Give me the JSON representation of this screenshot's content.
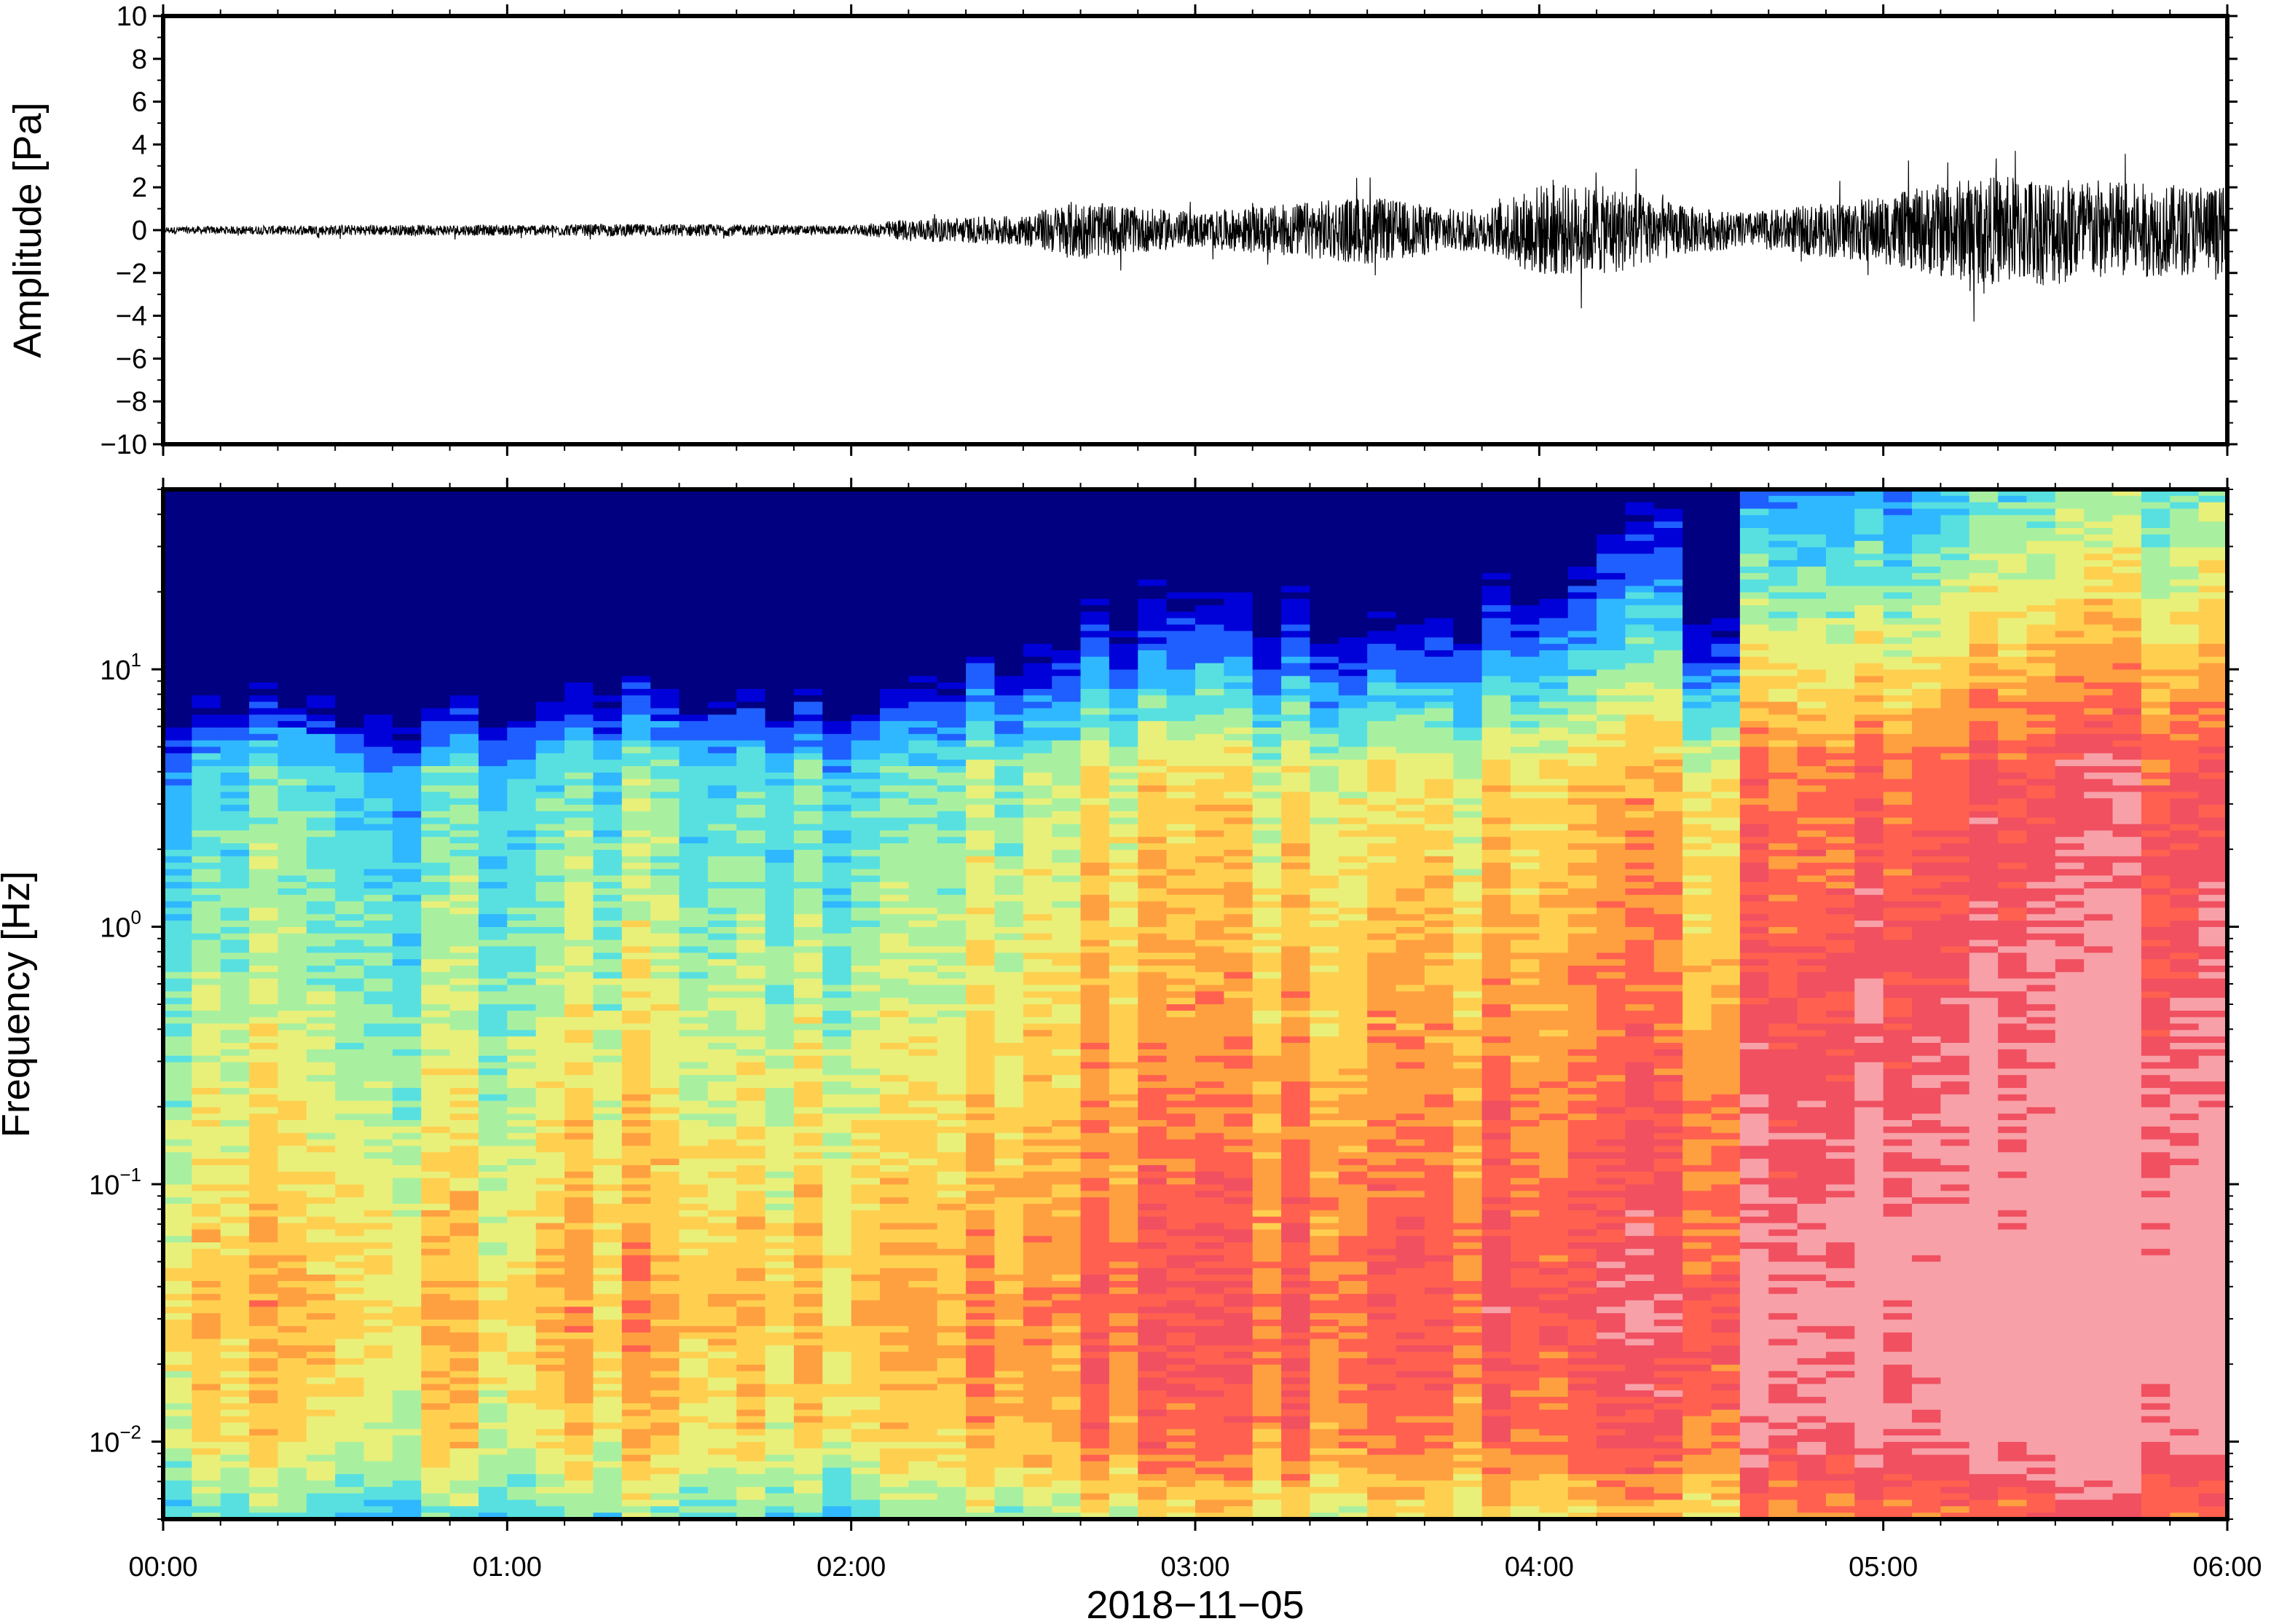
{
  "chart_data": [
    {
      "type": "line",
      "panel": "waveform",
      "ylabel": "Amplitude [Pa]",
      "ylim": [
        -10,
        10
      ],
      "yticks": [
        "10",
        "8",
        "6",
        "4",
        "2",
        "0",
        "−2",
        "−4",
        "−6",
        "−8",
        "−10"
      ],
      "yvalues": [
        10,
        8,
        6,
        4,
        2,
        0,
        -2,
        -4,
        -6,
        -8,
        -10
      ],
      "xlim": [
        "00:00",
        "06:00"
      ],
      "series": [
        {
          "color": "#000000",
          "envelope_hours": [
            0.0,
            0.5,
            1.0,
            1.5,
            2.0,
            2.15,
            2.5,
            2.65,
            2.75,
            3.0,
            3.5,
            3.75,
            3.85,
            4.0,
            4.25,
            4.4,
            4.6,
            4.8,
            5.0,
            5.25,
            5.5,
            5.75,
            6.0
          ],
          "envelope_pa": [
            0.15,
            0.25,
            0.25,
            0.3,
            0.2,
            0.5,
            0.7,
            1.4,
            1.2,
            0.8,
            1.6,
            1.0,
            1.0,
            2.2,
            2.0,
            1.2,
            0.8,
            1.2,
            1.6,
            2.5,
            2.6,
            2.2,
            2.0
          ]
        }
      ]
    },
    {
      "type": "heatmap",
      "panel": "spectrogram",
      "ylabel": "Frequency [Hz]",
      "xlabel": "2018−11−05",
      "yscale": "log",
      "ylim": [
        0.005,
        50
      ],
      "yticks": [
        {
          "base": "10",
          "exp": "−2",
          "value": 0.01
        },
        {
          "base": "10",
          "exp": "−1",
          "value": 0.1
        },
        {
          "base": "10",
          "exp": "0",
          "value": 1
        },
        {
          "base": "10",
          "exp": "1",
          "value": 10
        }
      ],
      "xticks": [
        "00:00",
        "01:00",
        "02:00",
        "03:00",
        "04:00",
        "05:00",
        "06:00"
      ],
      "xticks_hours": [
        0,
        1,
        2,
        3,
        4,
        5,
        6
      ],
      "colormap": [
        "#000080",
        "#0000d8",
        "#1f5fff",
        "#2fb8ff",
        "#58e0e0",
        "#a8f0a0",
        "#e8f07a",
        "#ffd050",
        "#ffa040",
        "#ff6050",
        "#f05060",
        "#f8a0a8"
      ],
      "time_bins": 72,
      "activity_by_hour": [
        0.1,
        0.25,
        0.15,
        0.2,
        0.3,
        0.25,
        0.2,
        0.35,
        0.5,
        0.55,
        0.5,
        0.45,
        0.6,
        0.75,
        0.9,
        0.85,
        0.95,
        0.95,
        1.0
      ]
    }
  ]
}
